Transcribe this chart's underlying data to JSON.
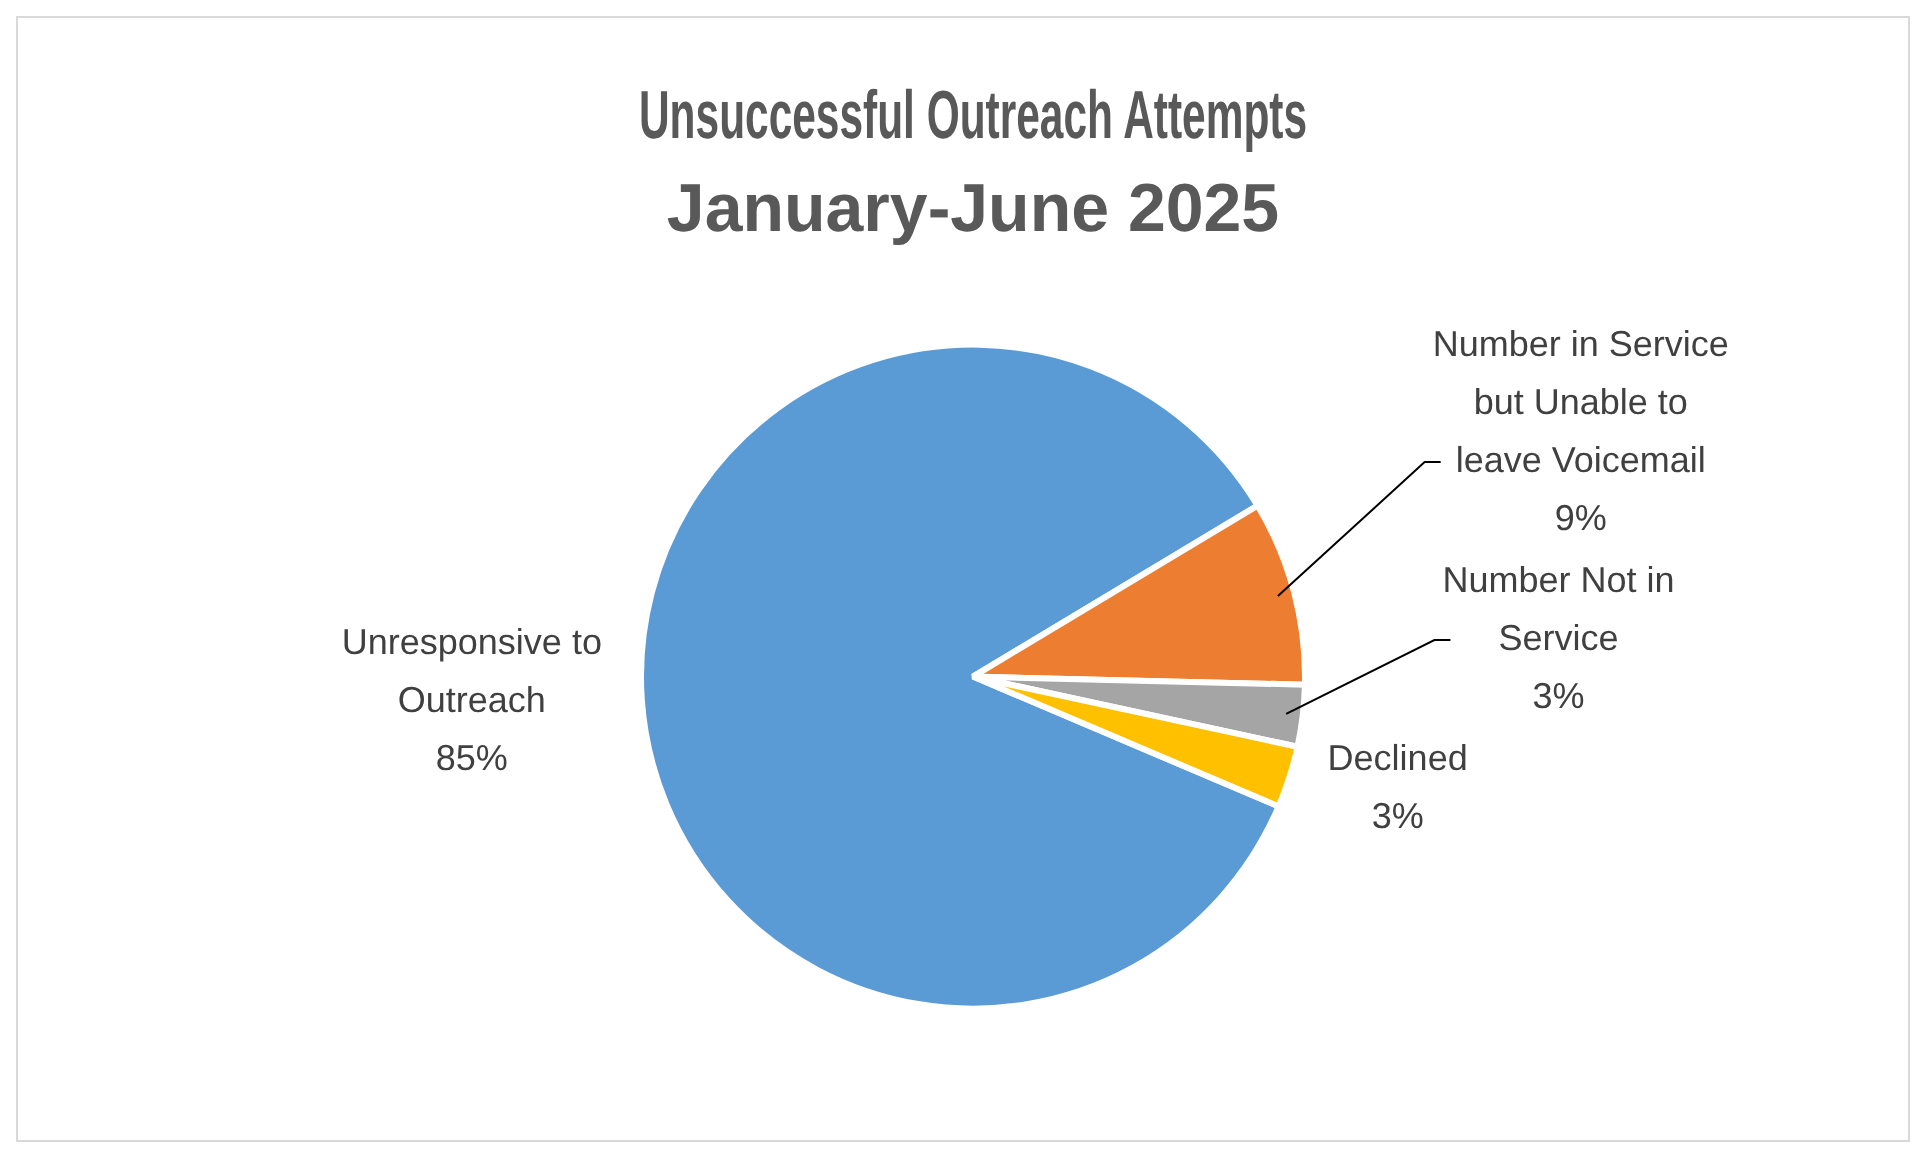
{
  "chart_data": {
    "type": "pie",
    "title": "Unsuccessful Outreach Attempts",
    "subtitle": "January-June 2025",
    "categories": [
      "Unresponsive to Outreach",
      "Number in Service but Unable to leave Voicemail",
      "Number Not in Service",
      "Declined"
    ],
    "values": [
      85,
      9,
      3,
      3
    ],
    "value_labels": [
      "85%",
      "9%",
      "3%",
      "3%"
    ],
    "colors": [
      "#5b9bd5",
      "#ed7d31",
      "#a5a5a5",
      "#ffc000"
    ],
    "legend": false
  }
}
